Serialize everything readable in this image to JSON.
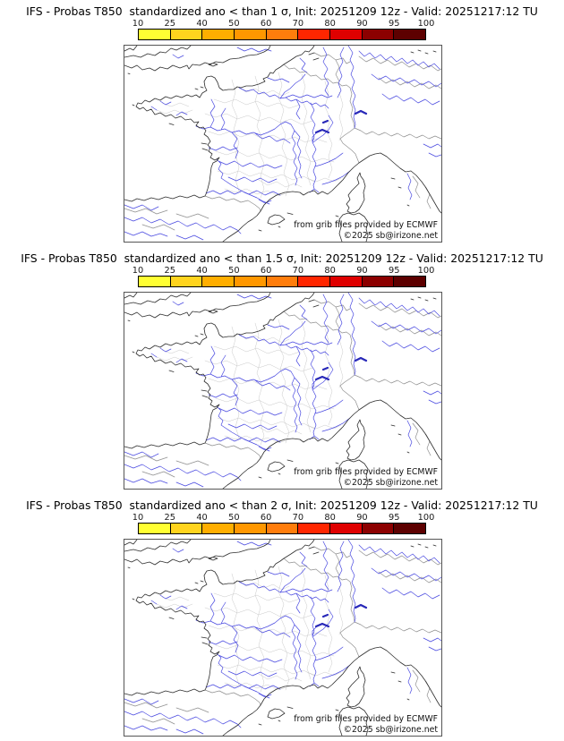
{
  "app": {
    "background": "#ffffff"
  },
  "panels": [
    {
      "title": "IFS - Probas T850  standardized ano < than 1 σ, Init: 20251209 12z - Valid: 20251217:12 TU"
    },
    {
      "title": "IFS - Probas T850  standardized ano < than 1.5 σ, Init: 20251209 12z - Valid: 20251217:12 TU"
    },
    {
      "title": "IFS - Probas T850  standardized ano < than 2 σ, Init: 20251209 12z - Valid: 20251217:12 TU"
    }
  ],
  "colorbar": {
    "ticks": [
      "10",
      "25",
      "40",
      "50",
      "60",
      "70",
      "80",
      "90",
      "95",
      "100"
    ],
    "segment_colors": [
      "#ffff33",
      "#ffd41e",
      "#ffae00",
      "#ff9700",
      "#ff7d0c",
      "#ff2600",
      "#df0000",
      "#8c0000",
      "#5d0000"
    ]
  },
  "map": {
    "attribution_line1": "from grib files provided by ECMWF",
    "attribution_line2": "©2025 sb@irizone.net",
    "colors": {
      "coast": "#2e2e2e",
      "country-border": "#8f8f8f",
      "department-border": "#c9c9c9",
      "river": "#4949e0",
      "lake": "#2828b8",
      "frame": "#555555"
    }
  }
}
